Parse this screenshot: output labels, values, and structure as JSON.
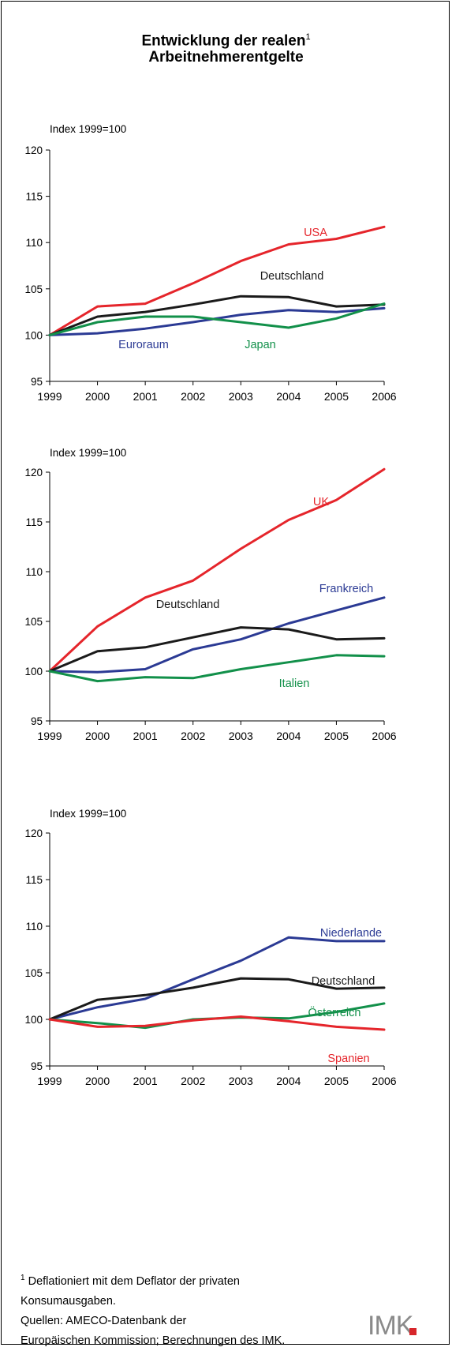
{
  "page": {
    "title_line1": "Entwicklung der realen",
    "title_sup": "1",
    "title_line2": "Arbeitnehmerentgelte"
  },
  "footnote": {
    "marker": "1",
    "line1": "Deflationiert mit dem Deflator der privaten",
    "line2": "Konsumausgaben.",
    "line3": "Quellen: AMECO-Datenbank der",
    "line4": "Europäischen Kommission; Berechnungen des IMK."
  },
  "logo": {
    "text": "IMK",
    "accent_color": "#d7262b"
  },
  "colors": {
    "red": "#e5252b",
    "black": "#1a1a1a",
    "blue": "#2b3a94",
    "green": "#12904a"
  },
  "chart_data": [
    {
      "type": "line",
      "ylabel": "Index 1999=100",
      "x": [
        "1999",
        "2000",
        "2001",
        "2002",
        "2003",
        "2004",
        "2005",
        "2006"
      ],
      "ylim": [
        95,
        120
      ],
      "yticks": [
        "95",
        "100",
        "105",
        "110",
        "115",
        "120"
      ],
      "grid": false,
      "series": [
        {
          "name": "USA",
          "color": "red",
          "values": [
            100,
            103.1,
            103.4,
            105.6,
            108.0,
            109.8,
            110.4,
            111.7
          ]
        },
        {
          "name": "Deutschland",
          "color": "black",
          "values": [
            100,
            102.0,
            102.5,
            103.3,
            104.2,
            104.1,
            103.1,
            103.3
          ]
        },
        {
          "name": "Euroraum",
          "color": "blue",
          "values": [
            100,
            100.2,
            100.7,
            101.4,
            102.2,
            102.7,
            102.5,
            102.9
          ]
        },
        {
          "name": "Japan",
          "color": "green",
          "values": [
            100,
            101.4,
            102.0,
            102.0,
            101.4,
            100.8,
            101.8,
            103.4
          ]
        }
      ]
    },
    {
      "type": "line",
      "ylabel": "Index 1999=100",
      "x": [
        "1999",
        "2000",
        "2001",
        "2002",
        "2003",
        "2004",
        "2005",
        "2006"
      ],
      "ylim": [
        95,
        120
      ],
      "yticks": [
        "95",
        "100",
        "105",
        "110",
        "115",
        "120"
      ],
      "grid": false,
      "series": [
        {
          "name": "UK",
          "color": "red",
          "values": [
            100,
            104.5,
            107.4,
            109.1,
            112.3,
            115.2,
            117.2,
            120.3
          ]
        },
        {
          "name": "Frankreich",
          "color": "blue",
          "values": [
            100,
            99.9,
            100.2,
            102.2,
            103.2,
            104.8,
            106.1,
            107.4
          ]
        },
        {
          "name": "Deutschland",
          "color": "black",
          "values": [
            100,
            102.0,
            102.4,
            103.4,
            104.4,
            104.2,
            103.2,
            103.3
          ]
        },
        {
          "name": "Italien",
          "color": "green",
          "values": [
            100,
            99.0,
            99.4,
            99.3,
            100.2,
            100.9,
            101.6,
            101.5
          ]
        }
      ]
    },
    {
      "type": "line",
      "ylabel": "Index 1999=100",
      "x": [
        "1999",
        "2000",
        "2001",
        "2002",
        "2003",
        "2004",
        "2005",
        "2006"
      ],
      "ylim": [
        95,
        120
      ],
      "yticks": [
        "95",
        "100",
        "105",
        "110",
        "115",
        "120"
      ],
      "grid": false,
      "series": [
        {
          "name": "Niederlande",
          "color": "blue",
          "values": [
            100,
            101.3,
            102.2,
            104.3,
            106.3,
            108.8,
            108.4,
            108.4
          ]
        },
        {
          "name": "Deutschland",
          "color": "black",
          "values": [
            100,
            102.1,
            102.6,
            103.4,
            104.4,
            104.3,
            103.3,
            103.4
          ]
        },
        {
          "name": "Österreich",
          "color": "green",
          "values": [
            100,
            99.6,
            99.1,
            100.0,
            100.2,
            100.1,
            100.8,
            101.7
          ]
        },
        {
          "name": "Spanien",
          "color": "red",
          "values": [
            100,
            99.2,
            99.3,
            99.9,
            100.3,
            99.8,
            99.2,
            98.9
          ]
        }
      ]
    }
  ]
}
